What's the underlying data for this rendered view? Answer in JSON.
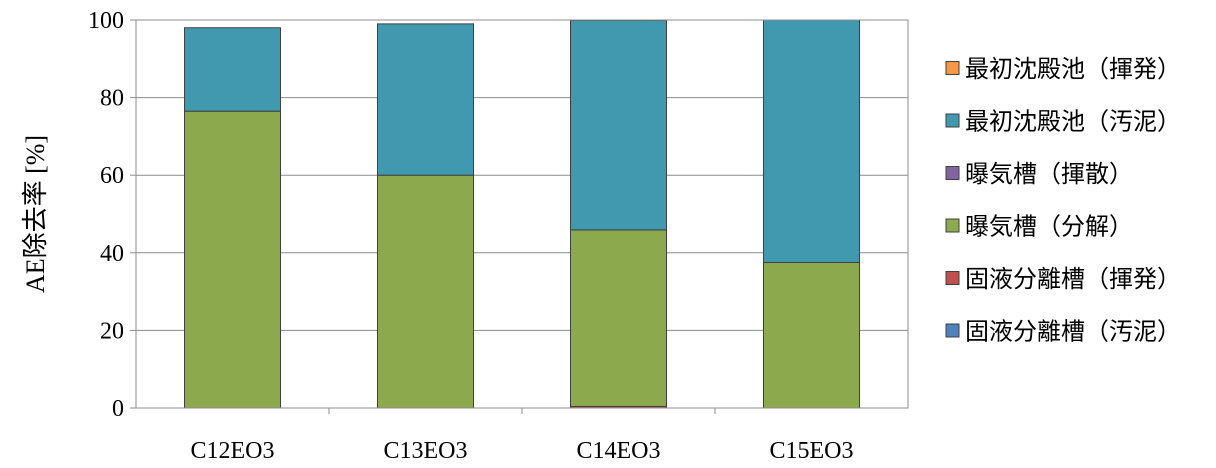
{
  "chart_data": {
    "type": "bar",
    "stacked": true,
    "categories": [
      "C12EO3",
      "C13EO3",
      "C14EO3",
      "C15EO3"
    ],
    "ylabel": "AE除去率 [%]",
    "ylim": [
      0,
      100
    ],
    "yticks": [
      "0",
      "20",
      "40",
      "60",
      "80",
      "100"
    ],
    "grid": true,
    "legend_position": "right",
    "series": [
      {
        "name": "固液分離槽（汚泥）",
        "color": "#4F81BD",
        "values": [
          0,
          0,
          0,
          0
        ]
      },
      {
        "name": "固液分離槽（揮発）",
        "color": "#C0504D",
        "values": [
          0,
          0,
          0.4,
          0
        ]
      },
      {
        "name": "曝気槽（分解）",
        "color": "#8DA94E",
        "values": [
          76.5,
          60,
          45.5,
          37.5
        ]
      },
      {
        "name": "曝気槽（揮散）",
        "color": "#8064A2",
        "values": [
          0,
          0,
          0,
          0
        ]
      },
      {
        "name": "最初沈殿池（汚泥）",
        "color": "#4199B0",
        "values": [
          21.5,
          39,
          54,
          62.5
        ]
      },
      {
        "name": "最初沈殿池（揮発）",
        "color": "#F79646",
        "values": [
          0,
          0,
          0,
          0
        ]
      }
    ],
    "legend_order": [
      5,
      4,
      3,
      2,
      1,
      0
    ]
  }
}
